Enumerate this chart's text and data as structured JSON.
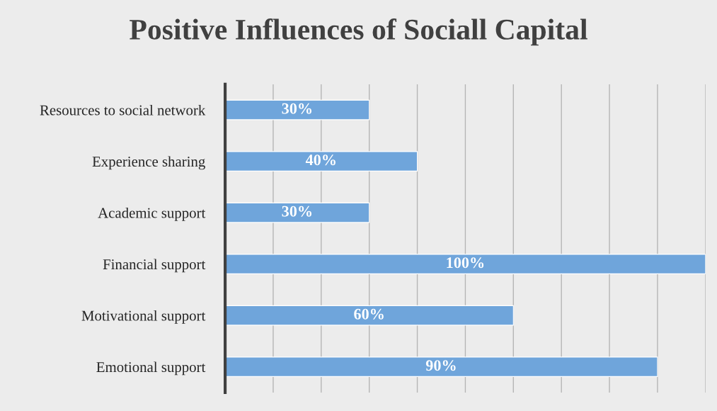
{
  "chart_data": {
    "type": "bar",
    "orientation": "horizontal",
    "title": "Positive Influences of Sociall Capital",
    "categories": [
      "Resources to social network",
      "Experience sharing",
      "Academic support",
      "Financial support",
      "Motivational support",
      "Emotional support"
    ],
    "values": [
      30,
      40,
      30,
      100,
      60,
      90
    ],
    "value_labels": [
      "30%",
      "40%",
      "30%",
      "100%",
      "60%",
      "90%"
    ],
    "color": "#6fa5db",
    "xlim": [
      0,
      100
    ],
    "xticks": [
      {
        "value": 0,
        "label": null
      },
      {
        "value": 10,
        "label": null
      },
      {
        "value": 20,
        "label": null
      },
      {
        "value": 30,
        "label": null
      },
      {
        "value": 40,
        "label": null
      },
      {
        "value": 50,
        "label": null
      },
      {
        "value": 60,
        "label": null
      },
      {
        "value": 70,
        "label": null
      },
      {
        "value": 80,
        "label": null
      },
      {
        "value": 90,
        "label": null
      },
      {
        "value": 100,
        "label": null
      }
    ],
    "grid": "x",
    "tick_labels": "y"
  }
}
